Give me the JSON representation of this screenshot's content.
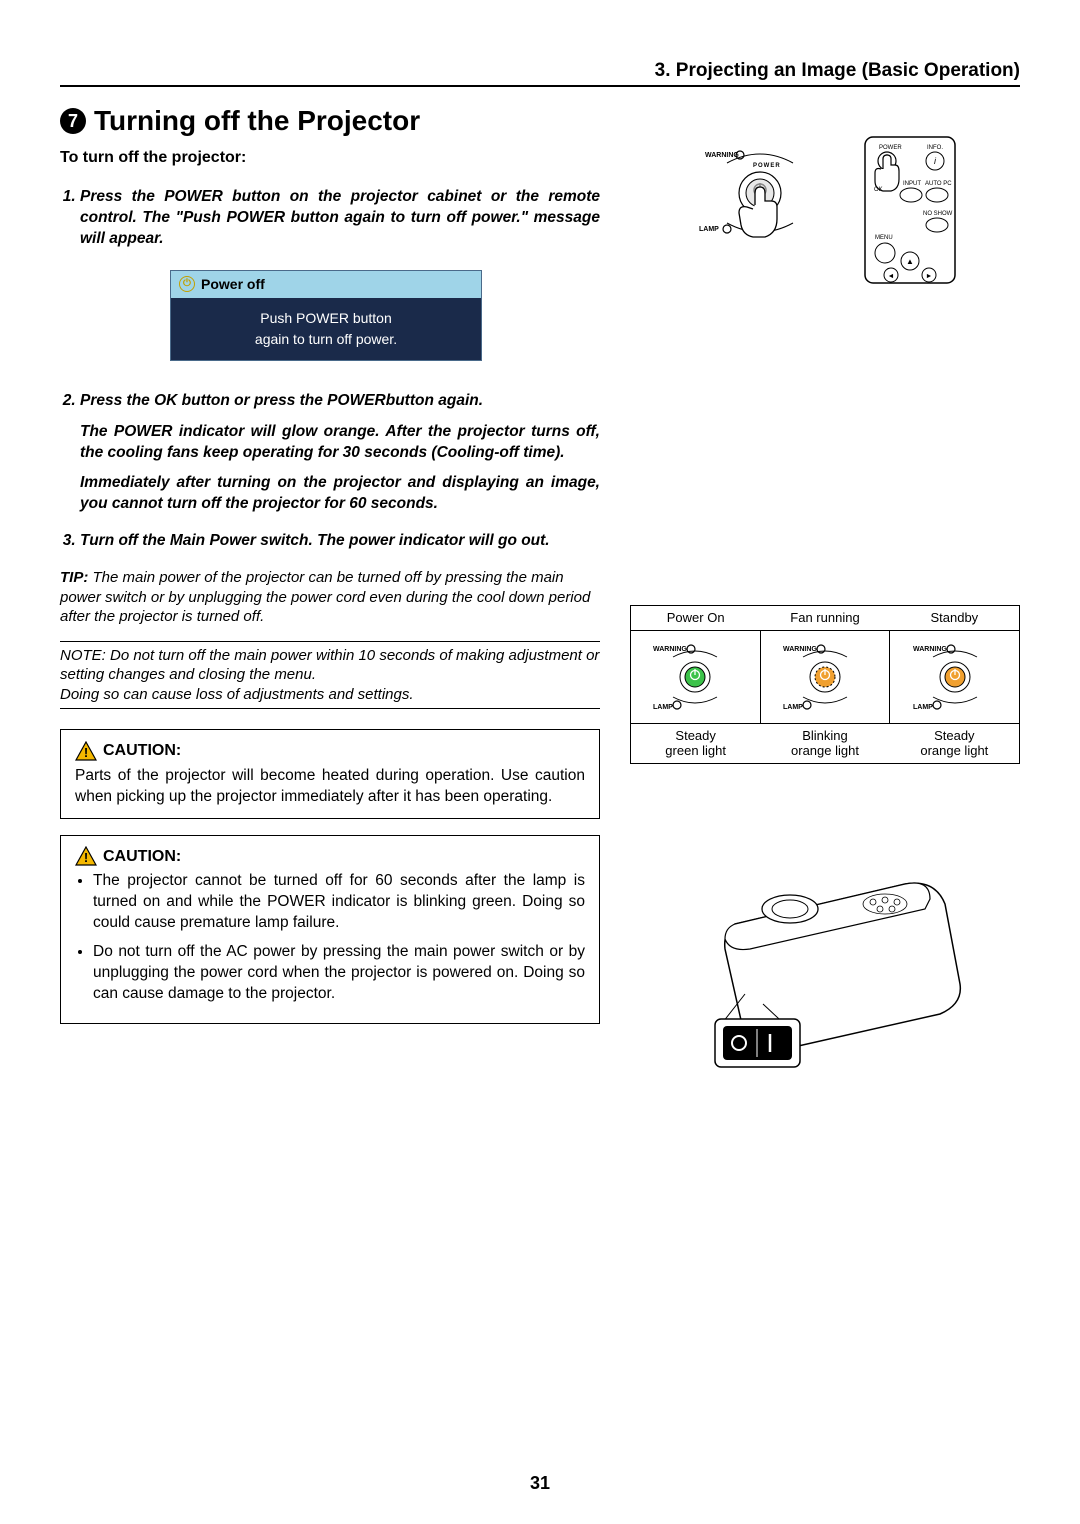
{
  "header": "3. Projecting an Image (Basic Operation)",
  "section_number": "7",
  "section_title": "Turning off the Projector",
  "intro": "To turn off the projector:",
  "steps": [
    {
      "text": "Press the POWER button on the projector cabinet or the remote control. The \"Push POWER button again to turn off power.\" message will appear."
    },
    {
      "text": "Press the OK button or press the POWERbutton again.",
      "sub": [
        "The POWER indicator will glow orange. After the projector turns off, the cooling fans keep operating for 30 seconds (Cooling-off time).",
        "Immediately after turning on the projector and displaying an image, you cannot turn off the projector for 60 seconds."
      ]
    },
    {
      "text": "Turn off the Main Power switch. The power indicator will go out."
    }
  ],
  "dialog": {
    "title": "Power off",
    "line1": "Push POWER button",
    "line2": "again to turn off power."
  },
  "tip_label": "TIP:",
  "tip_text": "The main power of the projector can be turned off by pressing the main power switch or by unplugging the power cord even during the cool down period after the projector is turned off.",
  "note_text": "NOTE: Do not turn off the main power within 10 seconds of making adjustment or setting changes and closing the menu.\nDoing so can cause loss of adjustments and settings.",
  "caution_label": "CAUTION:",
  "caution1_text": "Parts of the projector will become heated during operation. Use caution when picking up the projector immediately after it has been operating.",
  "caution2_items": [
    "The projector cannot be turned off for 60 seconds after the lamp is turned on and while the POWER indicator is blinking green. Doing so could cause premature lamp failure.",
    "Do not turn off the AC power by pressing the main power switch or by unplugging the power cord when the projector is powered on. Doing so can cause damage to the projector."
  ],
  "states": {
    "top_labels": [
      "Power On",
      "Fan running",
      "Standby"
    ],
    "bottom_labels": [
      "Steady\ngreen light",
      "Blinking\norange light",
      "Steady\norange light"
    ],
    "colors": [
      "#3cc24a",
      "#f0a030",
      "#f0a030"
    ],
    "warning_label": "WARNING",
    "lamp_label": "LAMP"
  },
  "remote": {
    "labels": [
      "POWER",
      "INFO.",
      "OK",
      "INPUT",
      "AUTO PC",
      "NO SHOW",
      "MENU"
    ]
  },
  "cabinet": {
    "power_label": "POWER",
    "warning_label": "WARNING",
    "lamp_label": "LAMP"
  },
  "page_number": "31",
  "caution_triangle_color": "#f5b800"
}
